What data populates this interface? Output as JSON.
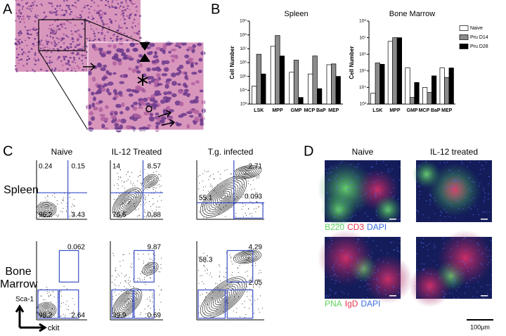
{
  "panel_labels": [
    "A",
    "B",
    "C",
    "D"
  ],
  "chart_data": [
    {
      "type": "bar",
      "title": "Spleen",
      "y_label": "Cell Number",
      "log_scale": true,
      "categories": [
        "LSK",
        "MPP",
        "GMP",
        "MCP BaP",
        "MEP"
      ],
      "ylim": [
        1000,
        1000000000
      ],
      "yticks": [
        {
          "value": 1000,
          "label": "10³"
        },
        {
          "value": 10000,
          "label": "10⁴"
        },
        {
          "value": 100000,
          "label": "10⁵"
        },
        {
          "value": 1000000,
          "label": "10⁶"
        },
        {
          "value": 10000000,
          "label": "10⁷"
        },
        {
          "value": 100000000,
          "label": "10⁸"
        },
        {
          "value": 1000000000,
          "label": "10⁹"
        }
      ],
      "series": [
        {
          "color": "#ffffff",
          "values": [
            20000,
            15000000,
            200000,
            150000,
            700000
          ]
        },
        {
          "color": "#8c8c8c",
          "values": [
            4000000,
            90000000,
            1500000,
            3000000,
            800000
          ]
        },
        {
          "color": "#000000",
          "values": [
            150000,
            3000000,
            3000,
            13000,
            100000
          ]
        }
      ]
    },
    {
      "type": "bar",
      "title": "Bone Marrow",
      "y_label": "Cell Number",
      "log_scale": true,
      "legend": "right",
      "categories": [
        "LSK",
        "MPP",
        "GMP",
        "MCP BaP",
        "MEP"
      ],
      "ylim": [
        1000,
        100000000
      ],
      "yticks": [
        {
          "value": 1000,
          "label": "10³"
        },
        {
          "value": 10000,
          "label": "10⁴"
        },
        {
          "value": 100000,
          "label": "10⁵"
        },
        {
          "value": 1000000,
          "label": "10⁶"
        },
        {
          "value": 10000000,
          "label": "10⁷"
        },
        {
          "value": 100000000,
          "label": "10⁸"
        }
      ],
      "series": [
        {
          "name": "Naive",
          "color": "#ffffff",
          "values": [
            4500,
            6000000,
            150000,
            10000,
            150000
          ]
        },
        {
          "name": "Pru D14",
          "color": "#8c8c8c",
          "values": [
            300000,
            10000000,
            2500,
            5000,
            40000
          ]
        },
        {
          "name": "Pru D28",
          "color": "#000000",
          "values": [
            250000,
            10000000,
            20000,
            50000,
            150000
          ]
        }
      ]
    }
  ],
  "flow": {
    "columns": [
      "Naive",
      "IL-12 Treated",
      "T.g. infected"
    ],
    "rows": [
      "Spleen",
      "Bone Marrow"
    ],
    "y_axis": "Sca-1",
    "x_axis": "ckit",
    "plots": [
      [
        {
          "top_left": 0.24,
          "top_right": 0.15,
          "bottom_left": 96.2,
          "bottom_right": 3.43
        },
        {
          "top_left": 14,
          "top_right": 8.57,
          "bottom_left": 76.6,
          "bottom_right": 0.88
        },
        {
          "top_right": 2.71,
          "mid_left": 55.1,
          "mid_right": 0.093
        }
      ],
      [
        {
          "top_right": 0.062,
          "bottom_left": 98.2,
          "bottom_right": 2.64
        },
        {
          "top_right": 9.87,
          "bottom_left": 39.9,
          "bottom_right": 0.69
        },
        {
          "top_right": 4.29,
          "mid_left": 58.3,
          "mid_right": 2.05
        }
      ]
    ]
  },
  "immunofluorescence": {
    "columns": [
      "Naive",
      "IL-12 treated"
    ],
    "stains": [
      [
        {
          "text": "B220",
          "color": "#5fd35f"
        },
        {
          "text": "CD3",
          "color": "#e8324c"
        },
        {
          "text": "DAPI",
          "color": "#3a6fe0"
        }
      ],
      [
        {
          "text": "PNA",
          "color": "#5fd35f"
        },
        {
          "text": "IgD",
          "color": "#e8324c"
        },
        {
          "text": "DAPI",
          "color": "#3a6fe0"
        }
      ]
    ],
    "scale_bar": "100μm"
  }
}
